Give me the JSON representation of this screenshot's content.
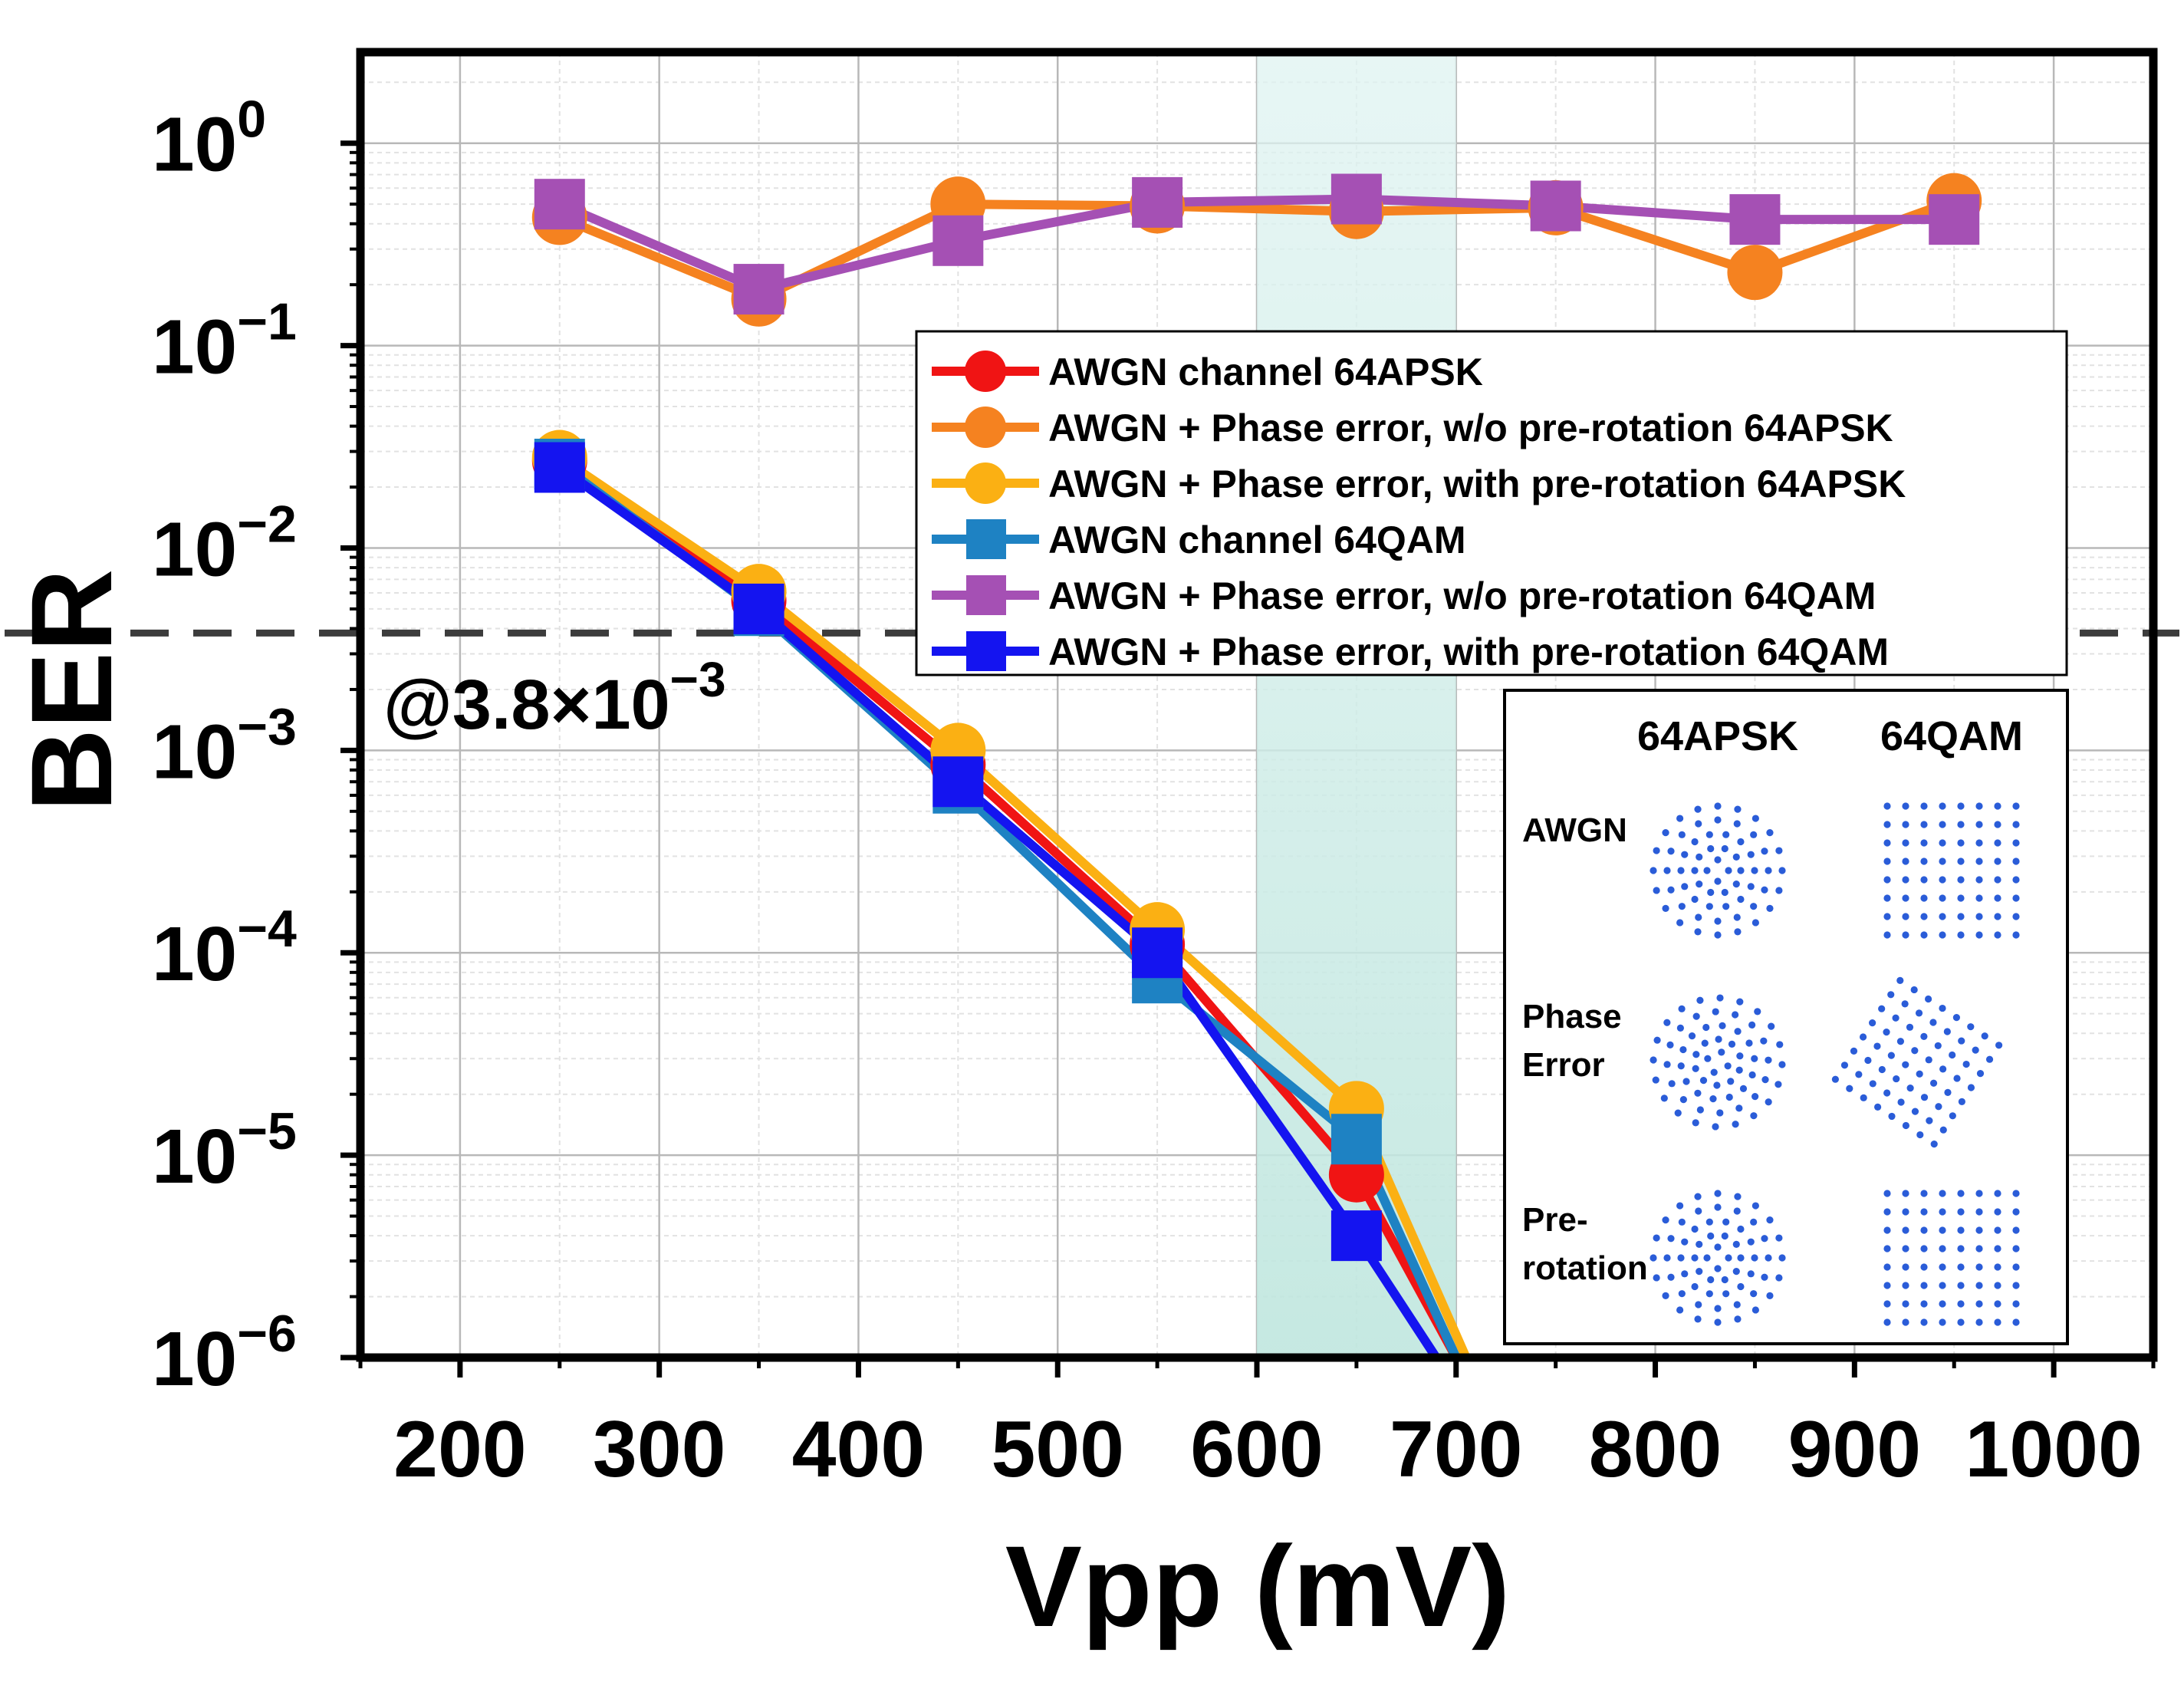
{
  "chart_data": {
    "type": "line",
    "title": "",
    "xlabel": "Vpp (mV)",
    "ylabel": "BER",
    "xlim": [
      150,
      1050
    ],
    "ylim_log10": [
      -6,
      0.45
    ],
    "yscale": "log",
    "x_ticks": [
      "200",
      "300",
      "400",
      "500",
      "600",
      "700",
      "800",
      "900",
      "1000"
    ],
    "y_ticks": [
      {
        "base": "10",
        "exp": "0"
      },
      {
        "base": "10",
        "exp": "−1"
      },
      {
        "base": "10",
        "exp": "−2"
      },
      {
        "base": "10",
        "exp": "−3"
      },
      {
        "base": "10",
        "exp": "−4"
      },
      {
        "base": "10",
        "exp": "−5"
      },
      {
        "base": "10",
        "exp": "−6"
      }
    ],
    "grid": true,
    "highlight_band": {
      "x_from": 600,
      "x_to": 700,
      "color": "#bfe6de"
    },
    "threshold": {
      "y": 0.0038,
      "label_base": "@3.8×10",
      "label_exp": "−3"
    },
    "legend_placement": "center-right",
    "series": [
      {
        "name": "AWGN channel 64APSK",
        "marker": "circle",
        "color": "#f01414",
        "x": [
          250,
          350,
          450,
          550,
          650,
          700
        ],
        "y": [
          0.027,
          0.0055,
          0.00085,
          0.00011,
          8e-06,
          1e-06
        ]
      },
      {
        "name": "AWGN + Phase error, w/o pre-rotation 64APSK",
        "marker": "circle",
        "color": "#f58220",
        "x": [
          250,
          350,
          450,
          550,
          650,
          750,
          850,
          950
        ],
        "y": [
          0.43,
          0.17,
          0.5,
          0.49,
          0.46,
          0.48,
          0.23,
          0.52
        ]
      },
      {
        "name": "AWGN + Phase error, with pre-rotation 64APSK",
        "marker": "circle",
        "color": "#fbb013",
        "x": [
          250,
          350,
          450,
          550,
          650,
          705
        ],
        "y": [
          0.028,
          0.0061,
          0.001,
          0.00013,
          1.7e-05,
          1e-06
        ]
      },
      {
        "name": "AWGN channel 64QAM",
        "marker": "square",
        "color": "#1e82c3",
        "x": [
          250,
          350,
          450,
          550,
          650,
          700
        ],
        "y": [
          0.026,
          0.0049,
          0.00065,
          7.5e-05,
          1.2e-05,
          1e-06
        ]
      },
      {
        "name": "AWGN + Phase error, w/o pre-rotation 64QAM",
        "marker": "square",
        "color": "#a550b4",
        "x": [
          250,
          350,
          450,
          550,
          650,
          750,
          850,
          950
        ],
        "y": [
          0.5,
          0.19,
          0.33,
          0.51,
          0.53,
          0.49,
          0.42,
          0.42
        ]
      },
      {
        "name": "AWGN + Phase error, with pre-rotation 64QAM",
        "marker": "square",
        "color": "#1414f0",
        "x": [
          250,
          350,
          450,
          550,
          650,
          690
        ],
        "y": [
          0.025,
          0.005,
          0.0007,
          0.0001,
          4e-06,
          1e-06
        ]
      }
    ],
    "inset": {
      "columns": [
        "64APSK",
        "64QAM"
      ],
      "rows": [
        {
          "lines": [
            "AWGN"
          ]
        },
        {
          "lines": [
            "Phase",
            "Error"
          ]
        },
        {
          "lines": [
            "Pre-",
            "rotation"
          ]
        }
      ],
      "dot_color": "#2a5cd8"
    }
  }
}
